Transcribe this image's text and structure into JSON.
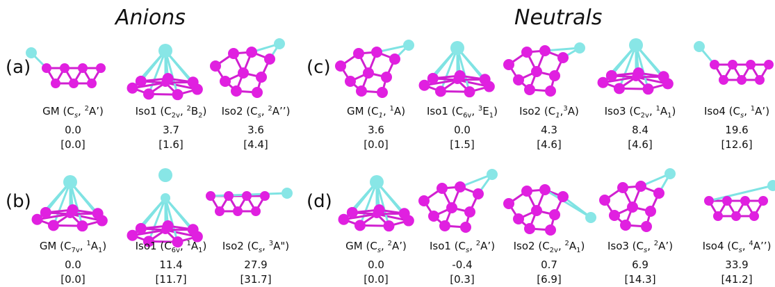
{
  "headers": {
    "anions": "Anions",
    "neutrals": "Neutrals"
  },
  "panels": {
    "a": "(a)",
    "b": "(b)",
    "c": "(c)",
    "d": "(d)"
  },
  "colors": {
    "boron": "#e020e0",
    "dopant": "#88e6e6",
    "bond": "#d020d0",
    "dopant_bond": "#7fe3e3"
  },
  "structures": {
    "a": [
      {
        "name": "GM (C",
        "sym": "s",
        "sep": ", ",
        "sup": "2",
        "term": "A’",
        "sub2": "",
        "close": ")",
        "energy": "0.0",
        "bracket": "[0.0]"
      },
      {
        "name": "Iso1 (C",
        "sym": "2v",
        "sep": ", ",
        "sup": "2",
        "term": "B",
        "sub2": "2",
        "close": ")",
        "energy": "3.7",
        "bracket": "[1.6]"
      },
      {
        "name": "Iso2 (C",
        "sym": "s",
        "sep": ", ",
        "sup": "2",
        "term": "A’’",
        "sub2": "",
        "close": ")",
        "energy": "3.6",
        "bracket": "[4.4]"
      }
    ],
    "b": [
      {
        "name": "GM (C",
        "sym": "7v",
        "sep": ", ",
        "sup": "1",
        "term": "A",
        "sub2": "1",
        "close": ")",
        "energy": "0.0",
        "bracket": "[0.0]"
      },
      {
        "name": "Iso1 (C",
        "sym": "6v",
        "sep": ", ",
        "sup": "1",
        "term": "A",
        "sub2": "1",
        "close": ")",
        "energy": "11.4",
        "bracket": "[11.7]"
      },
      {
        "name": "Iso2 (C",
        "sym": "s",
        "sep": ", ",
        "sup": "3",
        "term": "A\"",
        "sub2": "",
        "close": ")",
        "energy": "27.9",
        "bracket": "[31.7]"
      }
    ],
    "c": [
      {
        "name": "GM (C",
        "sym": "1",
        "sep": ", ",
        "sup": "1",
        "term": "A",
        "sub2": "",
        "close": ")",
        "energy": "3.6",
        "bracket": "[0.0]"
      },
      {
        "name": "Iso1 (C",
        "sym": "6v",
        "sep": ", ",
        "sup": "3",
        "term": "E",
        "sub2": "1",
        "close": ")",
        "energy": "0.0",
        "bracket": "[1.5]"
      },
      {
        "name": "Iso2 (C",
        "sym": "1",
        "sep": ",",
        "sup": "3",
        "term": "A",
        "sub2": "",
        "close": ")",
        "energy": "4.3",
        "bracket": "[4.6]"
      },
      {
        "name": "Iso3 (C",
        "sym": "2v",
        "sep": ", ",
        "sup": "1",
        "term": "A",
        "sub2": "1",
        "close": ")",
        "energy": "8.4",
        "bracket": "[4.6]"
      },
      {
        "name": "Iso4 (C",
        "sym": "s",
        "sep": ", ",
        "sup": "1",
        "term": "A’",
        "sub2": "",
        "close": ")",
        "energy": "19.6",
        "bracket": "[12.6]"
      }
    ],
    "d": [
      {
        "name": "GM (C",
        "sym": "s",
        "sep": ", ",
        "sup": "2",
        "term": "A’",
        "sub2": "",
        "close": ")",
        "energy": "0.0",
        "bracket": "[0.0]"
      },
      {
        "name": "Iso1 (C",
        "sym": "s",
        "sep": ", ",
        "sup": "2",
        "term": "A’",
        "sub2": "",
        "close": ")",
        "energy": "-0.4",
        "bracket": "[0.3]"
      },
      {
        "name": "Iso2 (C",
        "sym": "2v",
        "sep": ", ",
        "sup": "2",
        "term": "A",
        "sub2": "1",
        "close": ")",
        "energy": "0.7",
        "bracket": "[6.9]"
      },
      {
        "name": "Iso3 (C",
        "sym": "s",
        "sep": ", ",
        "sup": "2",
        "term": "A’",
        "sub2": "",
        "close": ")",
        "energy": "6.9",
        "bracket": "[14.3]"
      },
      {
        "name": "Iso4 (C",
        "sym": "s",
        "sep": ", ",
        "sup": "4",
        "term": "A’’",
        "sub2": "",
        "close": ")",
        "energy": "33.9",
        "bracket": "[41.2]"
      }
    ]
  }
}
